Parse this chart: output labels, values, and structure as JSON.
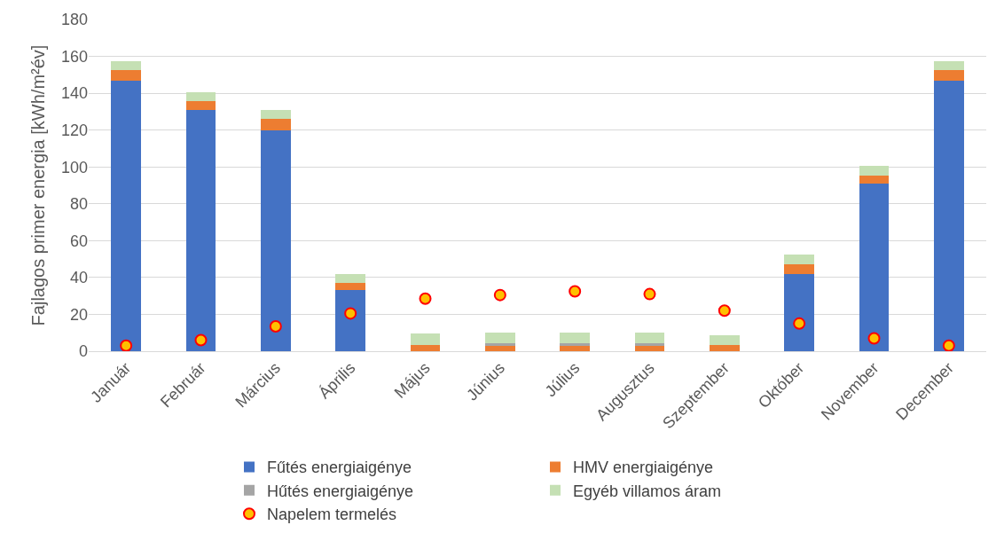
{
  "chart_data": {
    "type": "bar",
    "stacked": true,
    "ylabel": "Fajlagos primer energia [kWh/m²év]",
    "categories": [
      "Január",
      "Február",
      "Március",
      "Április",
      "Május",
      "Június",
      "Július",
      "Augusztus",
      "Szeptember",
      "Október",
      "November",
      "December"
    ],
    "series": [
      {
        "name": "Fűtés energiaigénye",
        "color": "#4472c4",
        "values": [
          147,
          131,
          120,
          33,
          0,
          0,
          0,
          0,
          0,
          42,
          91,
          147
        ]
      },
      {
        "name": "HMV energiaigénye",
        "color": "#ed7d31",
        "values": [
          5.5,
          4.5,
          6,
          4,
          3.5,
          3,
          3,
          3,
          3.5,
          5,
          4.5,
          5.5
        ]
      },
      {
        "name": "Hűtés energiaigénye",
        "color": "#a5a5a5",
        "values": [
          0,
          0,
          0,
          0,
          0,
          1.5,
          1.5,
          1.5,
          0,
          0,
          0,
          0
        ]
      },
      {
        "name": "Egyéb villamos áram",
        "color": "#c5e0b4",
        "values": [
          5,
          5,
          5,
          5,
          6,
          5.5,
          5.5,
          5.5,
          5,
          5.5,
          5,
          5
        ]
      },
      {
        "name": "Napelem termelés",
        "type": "scatter",
        "color": "#ffc000",
        "values": [
          3,
          6,
          13.5,
          20.5,
          28.5,
          30.5,
          32.5,
          31,
          22,
          15,
          7,
          3
        ]
      }
    ],
    "ylim": [
      0,
      180
    ],
    "yticks": [
      0,
      20,
      40,
      60,
      80,
      100,
      120,
      140,
      160,
      180
    ],
    "grid": "y",
    "legend": "bottom",
    "marker": "circle"
  }
}
